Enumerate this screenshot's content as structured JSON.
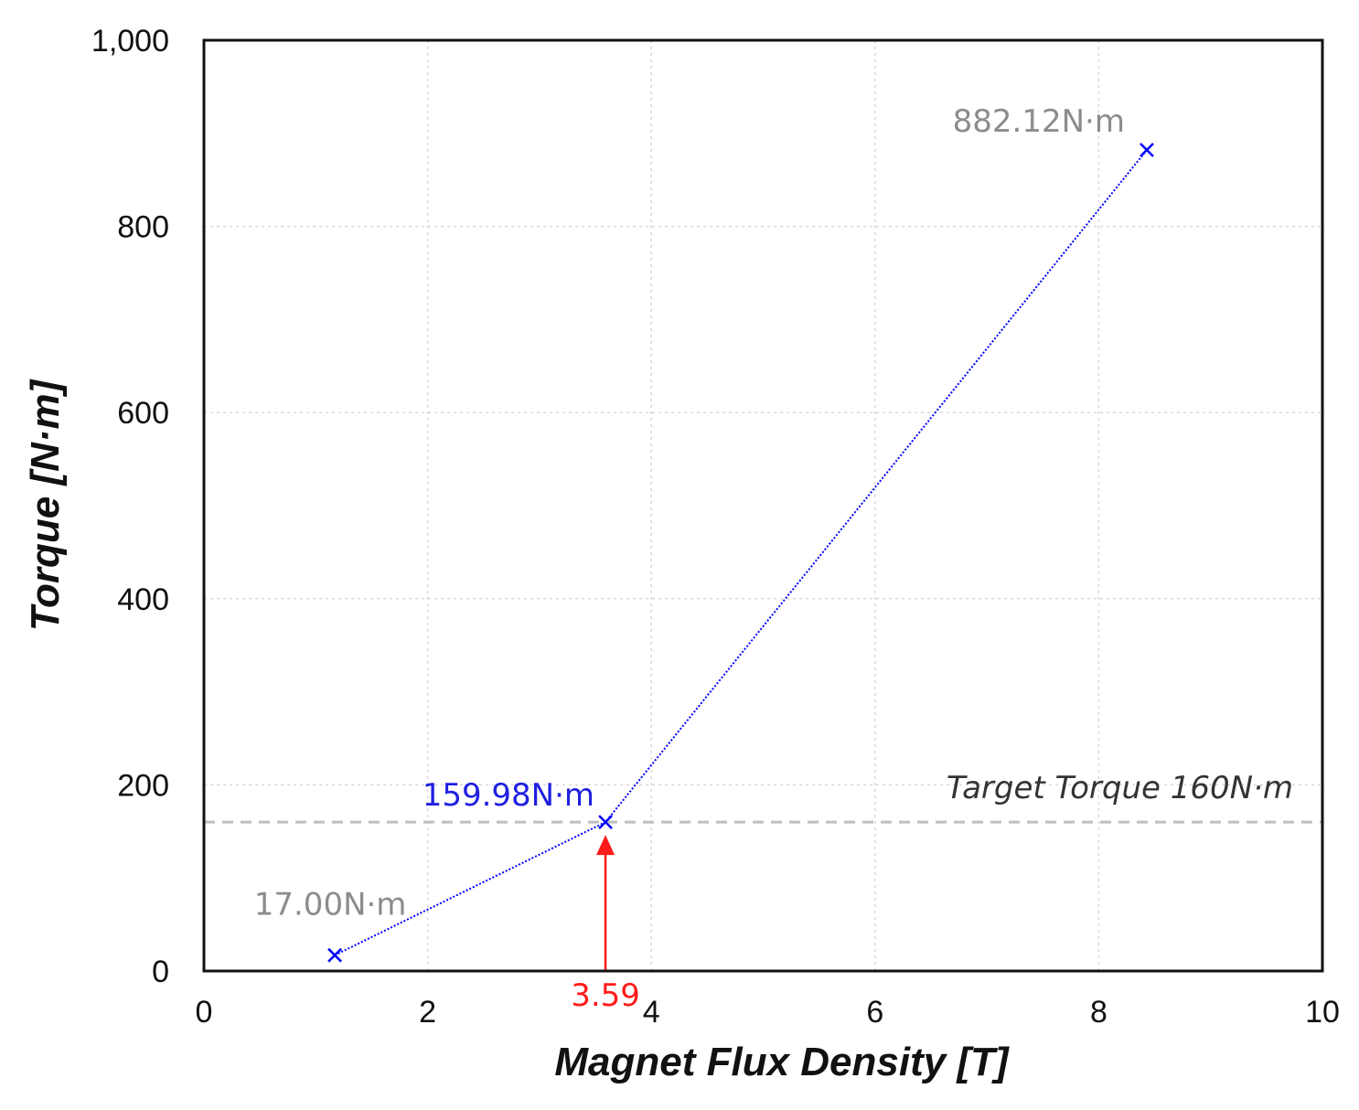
{
  "chart_data": {
    "type": "line",
    "title": "",
    "xlabel": "Magnet Flux Density [T]",
    "ylabel": "Torque [N·m]",
    "xlim": [
      0,
      10
    ],
    "ylim": [
      0,
      1000
    ],
    "grid": true,
    "x_ticks": [
      0,
      2,
      4,
      6,
      8,
      10
    ],
    "x_tick_labels": [
      "0",
      "2",
      "4",
      "6",
      "8",
      "10"
    ],
    "y_ticks": [
      0,
      200,
      400,
      600,
      800,
      1000
    ],
    "y_tick_labels": [
      "0",
      "200",
      "400",
      "600",
      "800",
      "1,000"
    ],
    "series": [
      {
        "name": "Torque",
        "color": "#0000ff",
        "marker": "x",
        "points": [
          {
            "x": 1.17,
            "y": 17.0,
            "label": "17.00N·m",
            "label_color": "#8c8c8c"
          },
          {
            "x": 3.59,
            "y": 159.98,
            "label": "159.98N·m",
            "label_color": "#1f1fe0"
          },
          {
            "x": 8.43,
            "y": 882.12,
            "label": "882.12N·m",
            "label_color": "#8c8c8c"
          }
        ]
      }
    ],
    "target_line": {
      "y": 160,
      "label": "Target Torque 160N·m",
      "color": "#bfbfbf"
    },
    "marker_arrow": {
      "x": 3.59,
      "label": "3.59",
      "color": "#ff1a1a"
    }
  }
}
